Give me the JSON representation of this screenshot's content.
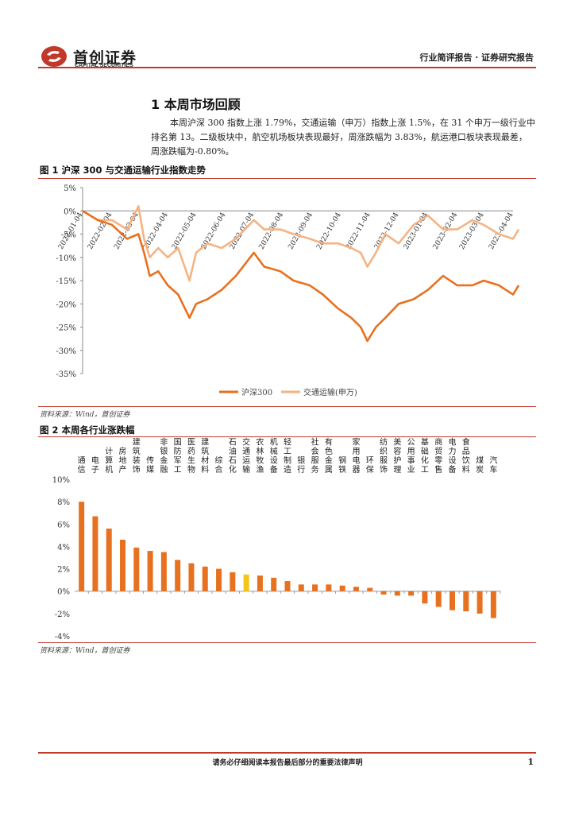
{
  "header": {
    "logo_cn": "首创证券",
    "logo_en": "CAPITAL SECURITIES",
    "right": "行业简评报告 · 证券研究报告"
  },
  "section": {
    "title": "1 本周市场回顾",
    "paragraph": "本周沪深 300 指数上涨 1.79%，交通运输（申万）指数上涨 1.5%，在 31 个申万一级行业中排名第 13。二级板块中，航空机场板块表现最好，周涨跌幅为 3.83%，航运港口板块表现最差，周涨跌幅为-0.80%。"
  },
  "figures": {
    "fig1_title": "图 1  沪深 300 与交通运输行业指数走势",
    "fig2_title": "图 2  本周各行业涨跌幅",
    "source1": "资料来源：Wind，首创证券",
    "source2": "资料来源：Wind，首创证券"
  },
  "footer": {
    "text": "请务必仔细阅读本报告最后部分的重要法律声明",
    "page": "1"
  },
  "colors": {
    "hs300": "#E8711F",
    "transport": "#F5B383",
    "bar": "#E8711F",
    "highlight": "#F5C518",
    "brand": "#C0392B"
  },
  "chart_data": [
    {
      "type": "line",
      "x_ticks": [
        "2022-01-04",
        "2022-02-04",
        "2022-03-04",
        "2022-04-04",
        "2022-05-04",
        "2022-06-04",
        "2022-07-04",
        "2022-08-04",
        "2022-09-04",
        "2022-10-04",
        "2022-11-04",
        "2022-12-04",
        "2023-01-04",
        "2023-02-04",
        "2023-03-04",
        "2023-04-04"
      ],
      "y_ticks": [
        "5%",
        "0%",
        "-5%",
        "-10%",
        "-15%",
        "-20%",
        "-25%",
        "-30%",
        "-35%"
      ],
      "ylim": [
        -35,
        5
      ],
      "series": [
        {
          "name": "沪深300",
          "x": [
            "2022-01-04",
            "2022-01-20",
            "2022-02-04",
            "2022-02-20",
            "2022-03-04",
            "2022-03-10",
            "2022-03-16",
            "2022-03-25",
            "2022-04-04",
            "2022-04-15",
            "2022-04-27",
            "2022-05-04",
            "2022-05-16",
            "2022-05-31",
            "2022-06-15",
            "2022-07-04",
            "2022-07-15",
            "2022-08-01",
            "2022-08-15",
            "2022-09-01",
            "2022-09-15",
            "2022-10-01",
            "2022-10-15",
            "2022-10-25",
            "2022-11-01",
            "2022-11-10",
            "2022-11-20",
            "2022-12-04",
            "2022-12-20",
            "2023-01-04",
            "2023-01-20",
            "2023-02-04",
            "2023-02-20",
            "2023-03-04",
            "2023-03-20",
            "2023-04-04",
            "2023-04-10"
          ],
          "values": [
            0,
            -2,
            -3,
            -6,
            -5,
            -9,
            -14,
            -13,
            -16,
            -18,
            -23,
            -20,
            -19,
            -17,
            -14,
            -9,
            -12,
            -13,
            -15,
            -16,
            -18,
            -21,
            -23,
            -25,
            -28,
            -25,
            -23,
            -20,
            -19,
            -17,
            -14,
            -16,
            -16,
            -15,
            -16,
            -18,
            -16
          ]
        },
        {
          "name": "交通运输(申万)",
          "x": [
            "2022-01-04",
            "2022-01-20",
            "2022-02-04",
            "2022-02-20",
            "2022-03-04",
            "2022-03-10",
            "2022-03-16",
            "2022-03-25",
            "2022-04-04",
            "2022-04-15",
            "2022-04-27",
            "2022-05-04",
            "2022-05-16",
            "2022-05-31",
            "2022-06-15",
            "2022-07-04",
            "2022-07-15",
            "2022-08-01",
            "2022-08-15",
            "2022-09-01",
            "2022-09-15",
            "2022-10-01",
            "2022-10-15",
            "2022-10-25",
            "2022-11-01",
            "2022-11-10",
            "2022-11-20",
            "2022-12-04",
            "2022-12-20",
            "2023-01-04",
            "2023-01-20",
            "2023-02-04",
            "2023-02-20",
            "2023-03-04",
            "2023-03-20",
            "2023-04-04",
            "2023-04-10"
          ],
          "values": [
            0,
            -2,
            -2,
            -4,
            1,
            -6,
            -10,
            -8,
            -10,
            -8,
            -15,
            -9,
            -7,
            -8,
            -6,
            -2,
            -4,
            -4,
            -5,
            -6,
            -7,
            -7,
            -8,
            -9,
            -12,
            -9,
            -5,
            -7,
            -3,
            -1,
            -4,
            -4,
            -2,
            -3,
            -5,
            -6,
            -4
          ]
        }
      ]
    },
    {
      "type": "bar",
      "categories": [
        "通信",
        "电子",
        "计算机",
        "房地产",
        "建筑装饰",
        "传媒",
        "非银金融",
        "国防军工",
        "医药生物",
        "建筑材料",
        "综合",
        "石油石化",
        "交通运输",
        "农林牧渔",
        "机械设备",
        "轻工制造",
        "银行",
        "社会服务",
        "有色金属",
        "钢铁",
        "家用电器",
        "环保",
        "纺织服饰",
        "美容护理",
        "公用事业",
        "基础化工",
        "商贸零售",
        "电力设备",
        "食品饮料",
        "煤炭",
        "汽车"
      ],
      "values": [
        8.0,
        6.7,
        5.6,
        4.6,
        3.9,
        3.6,
        3.5,
        2.8,
        2.5,
        2.2,
        2.0,
        1.7,
        1.5,
        1.4,
        1.2,
        0.9,
        0.6,
        0.6,
        0.6,
        0.5,
        0.4,
        0.3,
        -0.3,
        -0.4,
        -0.4,
        -1.1,
        -1.4,
        -1.7,
        -1.8,
        -2.0,
        -2.4
      ],
      "highlight": "交通运输",
      "y_ticks": [
        "10%",
        "8%",
        "6%",
        "4%",
        "2%",
        "0%",
        "-2%",
        "-4%"
      ],
      "ylim": [
        -4,
        10
      ]
    }
  ]
}
